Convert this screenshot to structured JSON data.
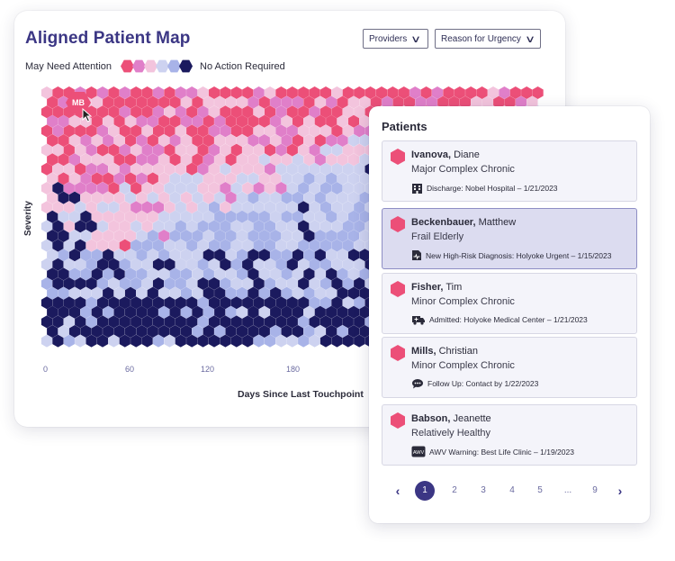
{
  "map": {
    "title": "Aligned Patient Map",
    "filters": [
      {
        "label": "Providers"
      },
      {
        "label": "Reason for Urgency"
      }
    ],
    "legend": {
      "left_label": "May Need Attention",
      "right_label": "No Action Required",
      "colors": [
        "#ec4f78",
        "#e07fc9",
        "#f3c4dd",
        "#cdd2f0",
        "#a8b3e8",
        "#1b1a5e"
      ]
    },
    "selected_marker": "MB",
    "y_axis_label": "Severity",
    "x_axis_label": "Days Since Last Touchpoint",
    "x_ticks": [
      "0",
      "60",
      "120",
      "180"
    ]
  },
  "chart_data": {
    "type": "heatmap",
    "xlabel": "Days Since Last Touchpoint",
    "ylabel": "Severity",
    "x_ticks": [
      0,
      60,
      120,
      180
    ],
    "scale": [
      "May Need Attention",
      "No Action Required"
    ],
    "selected_patient": "MB"
  },
  "patients": {
    "title": "Patients",
    "items": [
      {
        "last": "Ivanova,",
        "first": "Diane",
        "category": "Major Complex Chronic",
        "icon": "building-icon",
        "event": "Discharge: Nobel Hospital – 1/21/2023",
        "selected": false
      },
      {
        "last": "Beckenbauer,",
        "first": "Matthew",
        "category": "Frail Elderly",
        "icon": "diagnosis-document-icon",
        "event": "New High-Risk Diagnosis: Holyoke Urgent – 1/15/2023",
        "selected": true
      },
      {
        "last": "Fisher,",
        "first": "Tim",
        "category": "Minor Complex Chronic",
        "icon": "ambulance-icon",
        "event": "Admitted: Holyoke Medical Center – 1/21/2023",
        "selected": false
      },
      {
        "last": "Mills,",
        "first": "Christian",
        "category": "Minor Complex Chronic",
        "icon": "chat-icon",
        "event": "Follow Up: Contact by 1/22/2023",
        "selected": false
      },
      {
        "last": "Babson,",
        "first": "Jeanette",
        "category": "Relatively Healthy",
        "icon": "awv-badge-icon",
        "event": "AWV Warning: Best Life Clinic – 1/19/2023",
        "selected": false
      }
    ],
    "icon_labels": {
      "awv": "AWV"
    }
  },
  "pagination": {
    "prev": "‹",
    "next": "›",
    "pages": [
      "1",
      "2",
      "3",
      "4",
      "5",
      "...",
      "9"
    ],
    "current": "1"
  }
}
